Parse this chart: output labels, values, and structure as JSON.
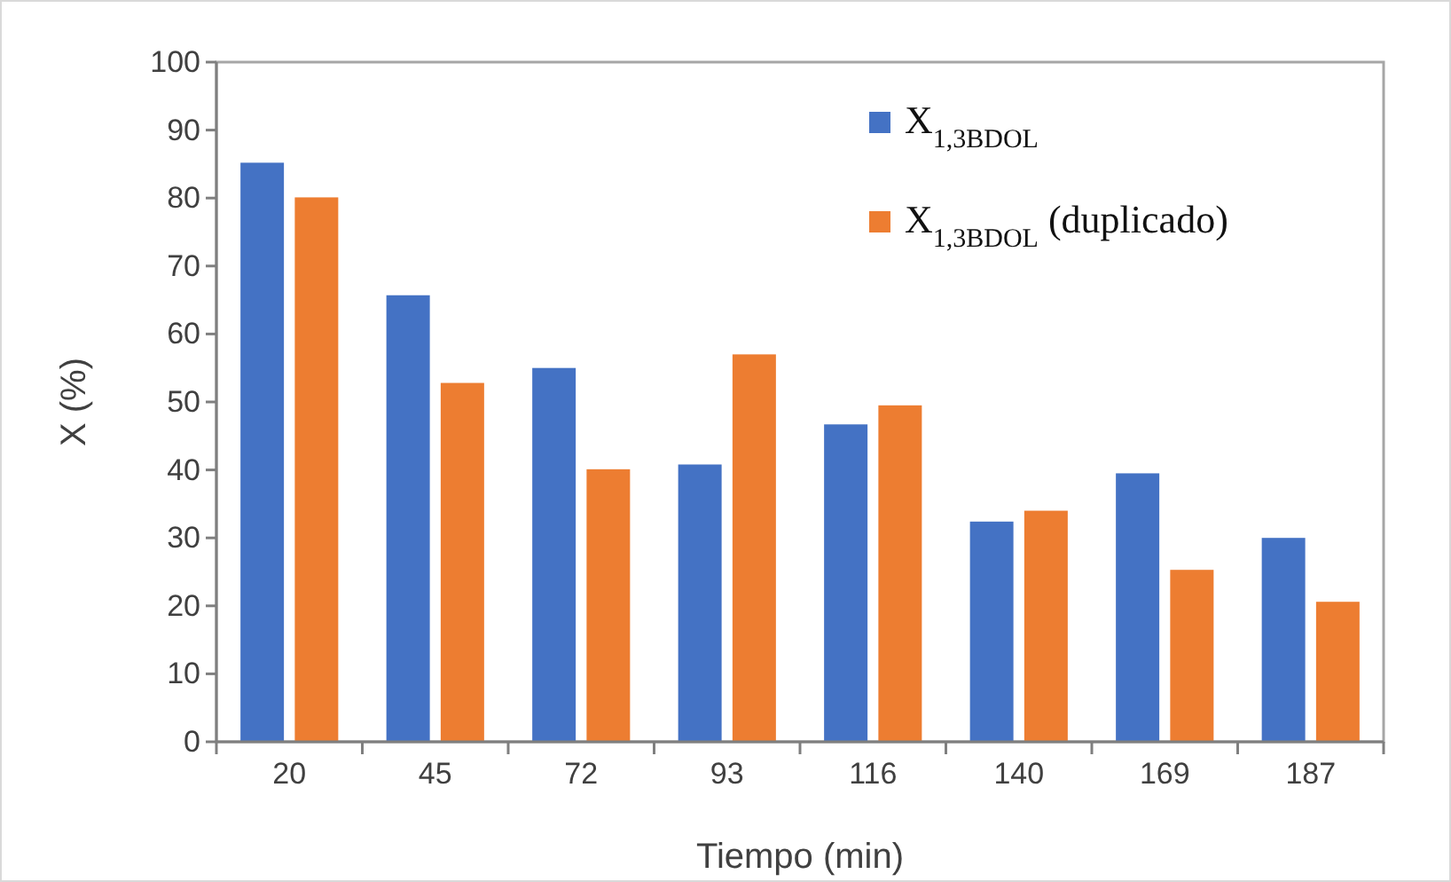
{
  "chart_data": {
    "type": "bar",
    "xlabel": "Tiempo (min)",
    "ylabel": "X (%)",
    "categories": [
      "20",
      "45",
      "72",
      "93",
      "116",
      "140",
      "169",
      "187"
    ],
    "series": [
      {
        "name": "X$_{1,3BDOL}$",
        "color": "#4472c4",
        "values": [
          85.2,
          65.7,
          55.0,
          40.8,
          46.7,
          32.4,
          39.5,
          30.0
        ]
      },
      {
        "name": "X$_{1,3BDOL}$ (duplicado)",
        "color": "#ed7d31",
        "values": [
          80.1,
          52.8,
          40.1,
          57.0,
          49.5,
          34.0,
          25.3,
          20.6
        ]
      }
    ],
    "ylim": [
      0,
      100
    ],
    "yticks": [
      0,
      10,
      20,
      30,
      40,
      50,
      60,
      70,
      80,
      90,
      100
    ],
    "grid": false,
    "legend": "top right"
  }
}
